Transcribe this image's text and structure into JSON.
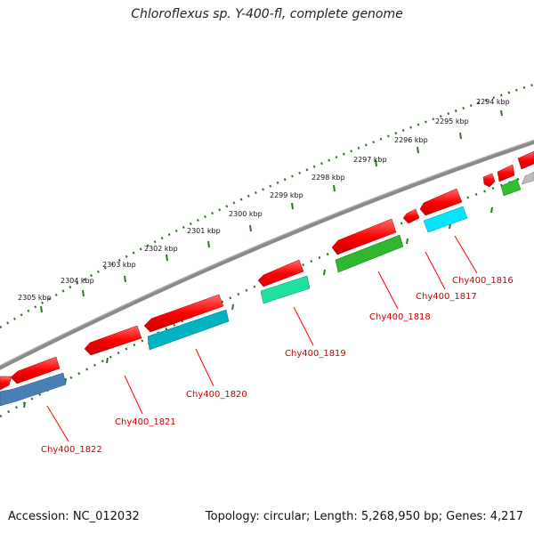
{
  "title": "Chloroflexus sp. Y-400-fl, complete genome",
  "footer": {
    "accession": "Accession: NC_012032",
    "stats": "Topology: circular; Length: 5,268,950 bp; Genes: 4,217"
  },
  "colors": {
    "backbone": "#8a8a8a",
    "tick": "#2a7a1e",
    "label_line": "#ff0000",
    "label_text": "#cc0000",
    "scale_text": "#111111"
  },
  "scale_labels": [
    "2294 kbp",
    "2295 kbp",
    "2296 kbp",
    "2297 kbp",
    "2298 kbp",
    "2299 kbp",
    "2300 kbp",
    "2301 kbp",
    "2302 kbp",
    "2303 kbp",
    "2304 kbp",
    "2305 kbp"
  ],
  "gene_labels": [
    "Chy400_1816",
    "Chy400_1817",
    "Chy400_1818",
    "Chy400_1819",
    "Chy400_1820",
    "Chy400_1821",
    "Chy400_1822"
  ],
  "features": [
    {
      "id": "f1",
      "color": "#ff0000",
      "strand": "forward"
    },
    {
      "id": "f2",
      "color": "#ff0000",
      "strand": "forward"
    },
    {
      "id": "f3",
      "color": "#ff0000",
      "strand": "forward"
    },
    {
      "id": "f4",
      "color": "#ff0000",
      "strand": "forward"
    },
    {
      "id": "f5",
      "color": "#ff0000",
      "strand": "forward"
    },
    {
      "id": "f6",
      "color": "#ff0000",
      "strand": "forward"
    },
    {
      "id": "f7",
      "color": "#ff0000",
      "strand": "forward"
    },
    {
      "id": "f8",
      "color": "#ff0000",
      "strand": "forward"
    },
    {
      "id": "f9",
      "color": "#ff0000",
      "strand": "forward"
    },
    {
      "id": "f10",
      "color": "#ff0000",
      "strand": "forward"
    },
    {
      "id": "g1",
      "color": "#4a7fb5",
      "strand": "reverse"
    },
    {
      "id": "g2",
      "color": "#00b3c3",
      "strand": "reverse"
    },
    {
      "id": "g3",
      "color": "#1fe0a0",
      "strand": "reverse"
    },
    {
      "id": "g4",
      "color": "#2fb82f",
      "strand": "reverse"
    },
    {
      "id": "g5",
      "color": "#00e6ff",
      "strand": "reverse"
    },
    {
      "id": "g6",
      "color": "#30c030",
      "strand": "reverse"
    },
    {
      "id": "g7",
      "color": "#bbbbbb",
      "strand": "reverse"
    }
  ]
}
